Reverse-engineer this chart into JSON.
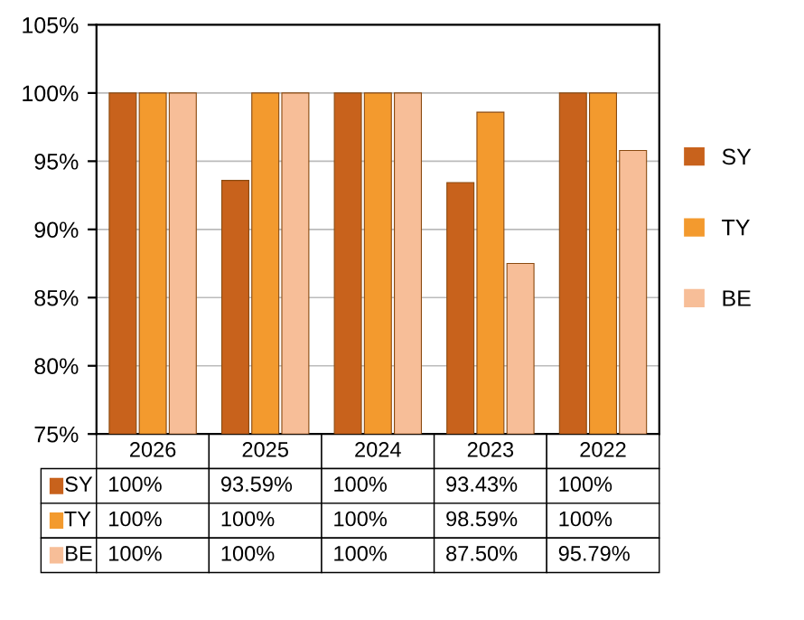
{
  "chart_data": {
    "type": "bar",
    "categories": [
      "2026",
      "2025",
      "2024",
      "2023",
      "2022"
    ],
    "series": [
      {
        "name": "SY",
        "color": "#c8621c",
        "values": [
          100,
          93.59,
          100,
          93.43,
          100
        ],
        "value_labels": [
          "100%",
          "93.59%",
          "100%",
          "93.43%",
          "100%"
        ]
      },
      {
        "name": "TY",
        "color": "#f39a2e",
        "values": [
          100,
          100,
          100,
          98.59,
          100
        ],
        "value_labels": [
          "100%",
          "100%",
          "100%",
          "98.59%",
          "100%"
        ]
      },
      {
        "name": "BE",
        "color": "#f7be98",
        "values": [
          100,
          100,
          100,
          87.5,
          95.79
        ],
        "value_labels": [
          "100%",
          "100%",
          "100%",
          "87.50%",
          "95.79%"
        ]
      }
    ],
    "ylim": [
      75,
      105
    ],
    "yticks": [
      {
        "value": 75,
        "label": "75%"
      },
      {
        "value": 80,
        "label": "80%"
      },
      {
        "value": 85,
        "label": "85%"
      },
      {
        "value": 90,
        "label": "90%"
      },
      {
        "value": 95,
        "label": "95%"
      },
      {
        "value": 100,
        "label": "100%"
      },
      {
        "value": 105,
        "label": "105%"
      }
    ],
    "grid": "y",
    "legend": "right"
  }
}
